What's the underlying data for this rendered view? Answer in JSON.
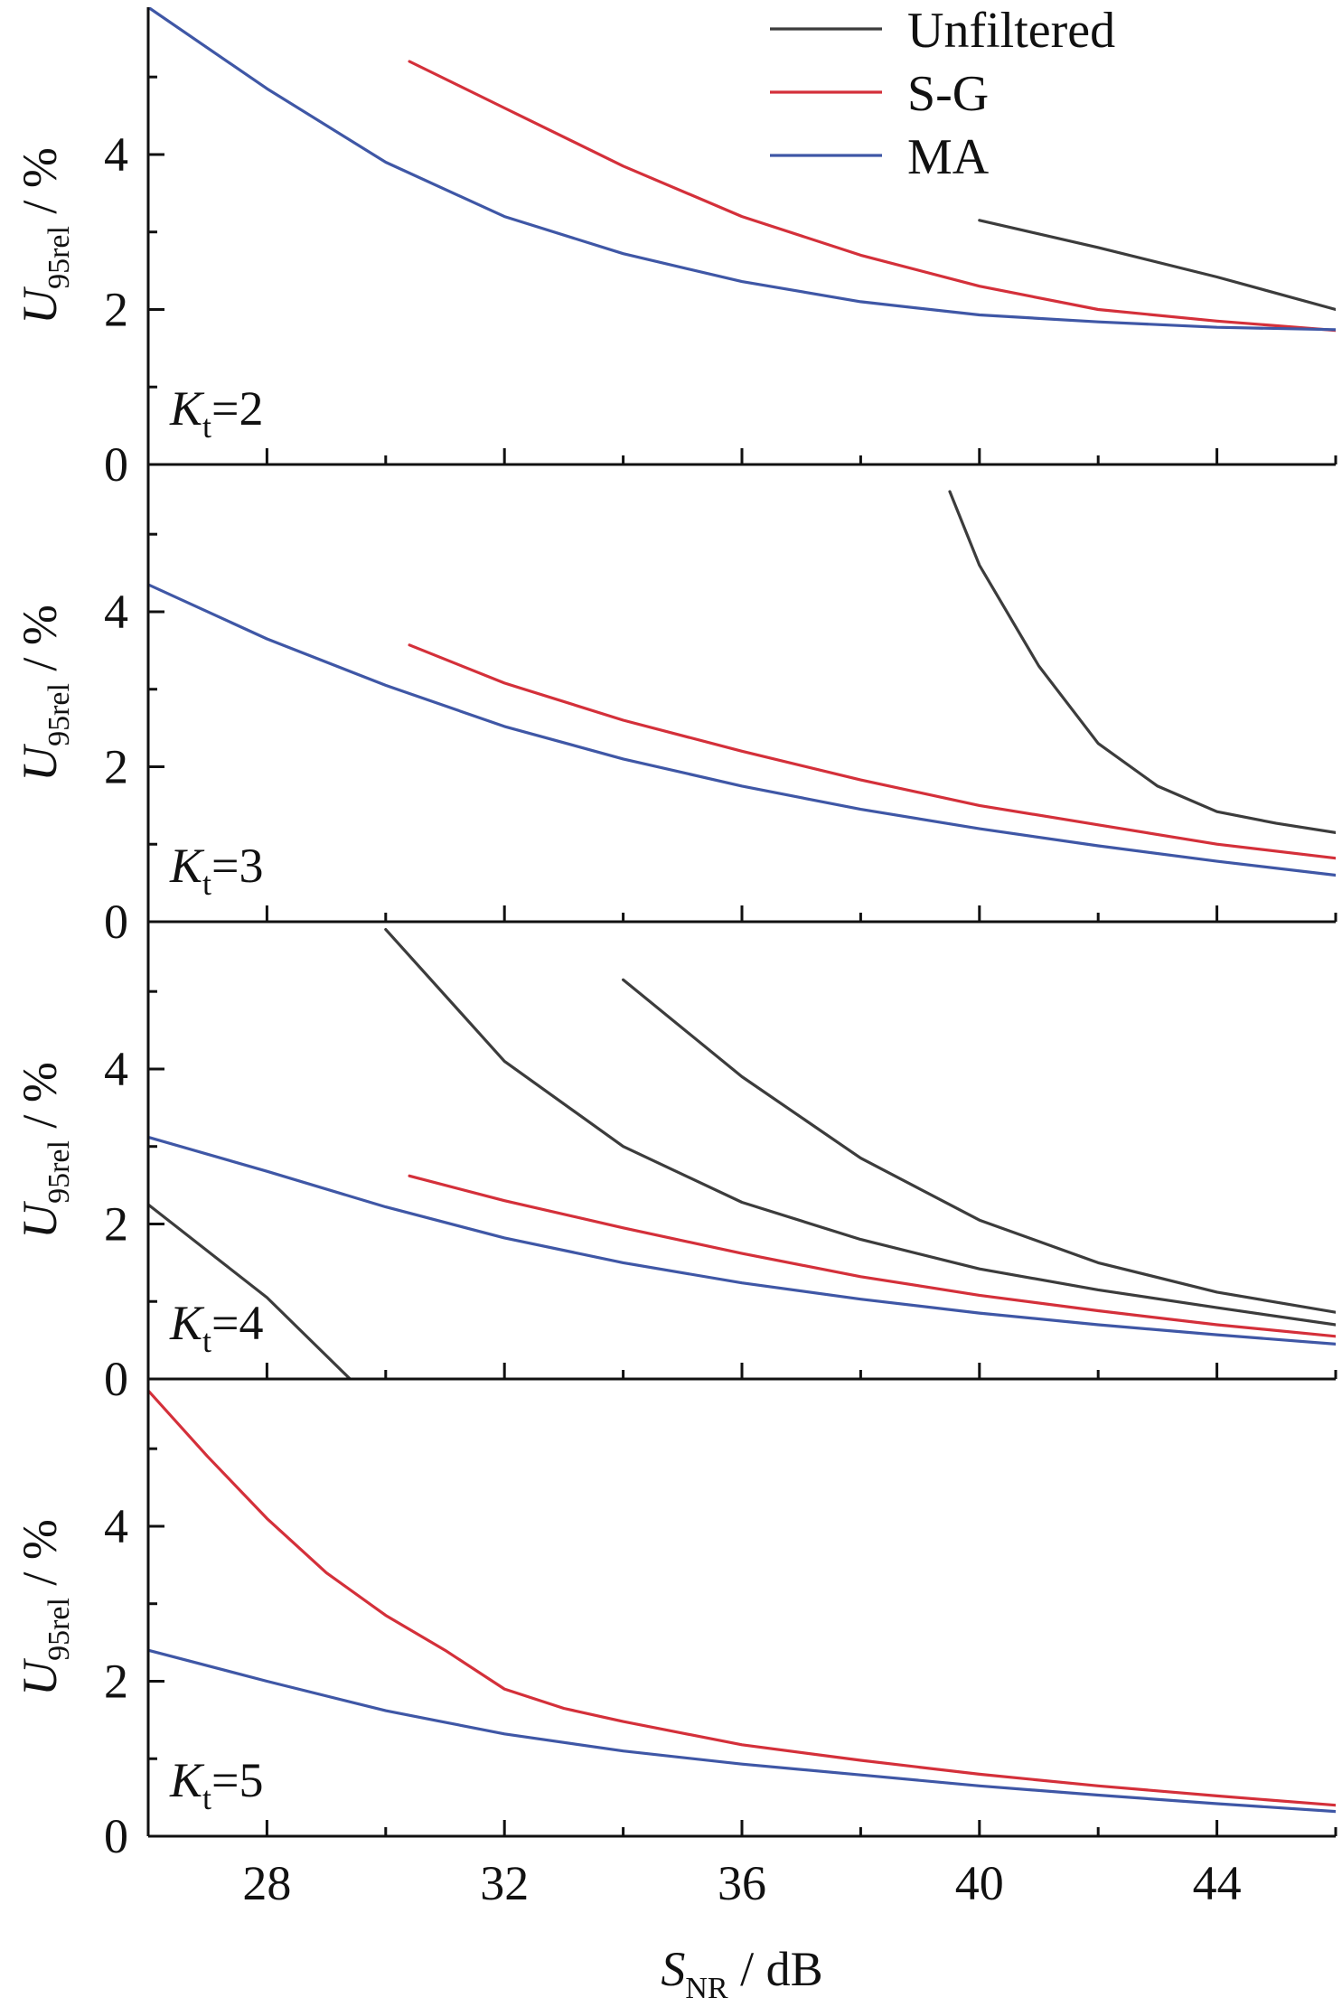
{
  "chart_data": {
    "type": "line",
    "x_title": {
      "main": "S",
      "sub": "NR",
      "unit": " / dB"
    },
    "y_title": {
      "main": "U",
      "sub": "95rel",
      "unit": " / %"
    },
    "xlim": [
      26,
      46
    ],
    "x_ticks": [
      28,
      32,
      36,
      40,
      44
    ],
    "y_ticks": [
      0,
      2,
      4
    ],
    "legend_position": "top-right",
    "legend": [
      {
        "label": "Unfiltered",
        "color": "#3c3c3c"
      },
      {
        "label": "S-G",
        "color": "#d4303a"
      },
      {
        "label": "MA",
        "color": "#3f57a6"
      }
    ],
    "panels": [
      {
        "label": {
          "main": "K",
          "sub": "t",
          "value": "=2"
        },
        "ylim": [
          0,
          5.9
        ],
        "series": [
          {
            "color": "#3c3c3c",
            "x": [
              40,
              42,
              44,
              46
            ],
            "y": [
              3.15,
              2.8,
              2.42,
              2.0
            ]
          },
          {
            "color": "#d4303a",
            "x": [
              30.4,
              32,
              34,
              36,
              38,
              40,
              42,
              44,
              46
            ],
            "y": [
              5.2,
              4.6,
              3.85,
              3.2,
              2.7,
              2.3,
              2.0,
              1.85,
              1.73
            ]
          },
          {
            "color": "#3f57a6",
            "x": [
              26,
              28,
              30,
              32,
              34,
              36,
              38,
              40,
              42,
              44,
              46
            ],
            "y": [
              5.9,
              4.85,
              3.9,
              3.2,
              2.72,
              2.36,
              2.1,
              1.93,
              1.84,
              1.77,
              1.74
            ]
          }
        ]
      },
      {
        "label": {
          "main": "K",
          "sub": "t",
          "value": "=3"
        },
        "ylim": [
          0,
          5.9
        ],
        "series": [
          {
            "color": "#3c3c3c",
            "x": [
              39.5,
              40,
              41,
              42,
              43,
              44,
              45,
              46
            ],
            "y": [
              5.55,
              4.6,
              3.3,
              2.3,
              1.75,
              1.42,
              1.27,
              1.15
            ]
          },
          {
            "color": "#d4303a",
            "x": [
              30.4,
              32,
              34,
              36,
              38,
              40,
              42,
              44,
              46
            ],
            "y": [
              3.57,
              3.08,
              2.6,
              2.2,
              1.83,
              1.5,
              1.25,
              1.0,
              0.82
            ]
          },
          {
            "color": "#3f57a6",
            "x": [
              26,
              28,
              30,
              32,
              34,
              36,
              38,
              40,
              42,
              44,
              46
            ],
            "y": [
              4.35,
              3.65,
              3.05,
              2.52,
              2.1,
              1.75,
              1.45,
              1.2,
              0.98,
              0.78,
              0.6
            ]
          }
        ]
      },
      {
        "label": {
          "main": "K",
          "sub": "t",
          "value": "=4"
        },
        "ylim": [
          0,
          5.9
        ],
        "series": [
          {
            "color": "#3c3c3c",
            "x": [
              26,
              28,
              29.4,
              30,
              32,
              34,
              36,
              38,
              40,
              42,
              44,
              46
            ],
            "y": [
              2.25,
              1.05,
              0.0,
              5.8,
              4.1,
              3.0,
              2.28,
              1.8,
              1.42,
              1.15,
              0.92,
              0.7
            ]
          },
          {
            "color": "#3c3c3c",
            "x": [
              34,
              36,
              38,
              40,
              42,
              44,
              46
            ],
            "y": [
              5.15,
              3.9,
              2.85,
              2.05,
              1.5,
              1.12,
              0.86
            ]
          },
          {
            "color": "#d4303a",
            "x": [
              30.4,
              32,
              34,
              36,
              38,
              40,
              42,
              44,
              46
            ],
            "y": [
              2.62,
              2.3,
              1.95,
              1.62,
              1.32,
              1.08,
              0.88,
              0.7,
              0.55
            ]
          },
          {
            "color": "#3f57a6",
            "x": [
              26,
              28,
              30,
              32,
              34,
              36,
              38,
              40,
              42,
              44,
              46
            ],
            "y": [
              3.12,
              2.68,
              2.22,
              1.82,
              1.5,
              1.24,
              1.03,
              0.85,
              0.7,
              0.57,
              0.45
            ]
          }
        ]
      },
      {
        "label": {
          "main": "K",
          "sub": "t",
          "value": "=5"
        },
        "ylim": [
          0,
          5.9
        ],
        "series": [
          {
            "color": "#d4303a",
            "x": [
              26,
              27,
              28,
              29,
              30,
              31,
              32,
              33,
              34,
              36,
              38,
              40,
              42,
              44,
              46
            ],
            "y": [
              5.75,
              4.9,
              4.1,
              3.4,
              2.85,
              2.4,
              1.9,
              1.65,
              1.48,
              1.18,
              0.98,
              0.8,
              0.65,
              0.52,
              0.4
            ]
          },
          {
            "color": "#3f57a6",
            "x": [
              26,
              28,
              30,
              32,
              34,
              36,
              38,
              40,
              42,
              44,
              46
            ],
            "y": [
              2.4,
              2.0,
              1.62,
              1.32,
              1.1,
              0.93,
              0.79,
              0.65,
              0.53,
              0.42,
              0.32
            ]
          }
        ]
      }
    ]
  }
}
